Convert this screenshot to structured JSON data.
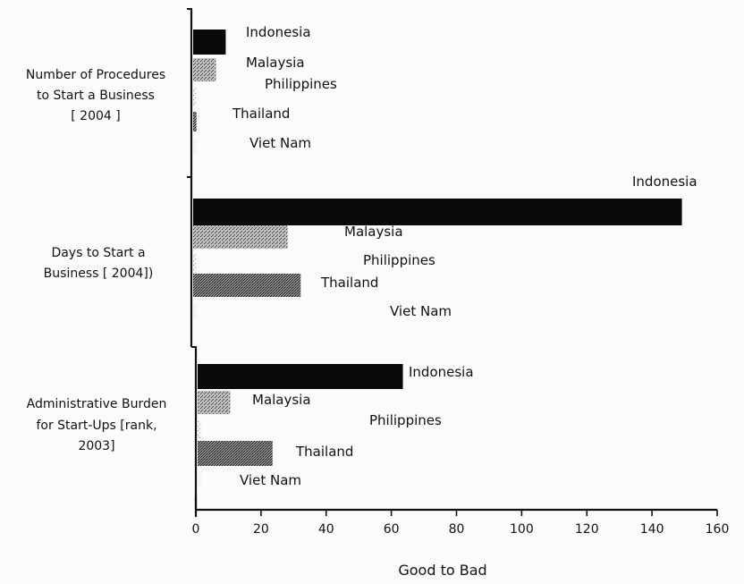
{
  "chart_data": {
    "type": "bar",
    "orientation": "horizontal",
    "xlabel": "Good to Bad",
    "xlim": [
      0,
      160
    ],
    "xticks": [
      0,
      20,
      40,
      60,
      80,
      100,
      120,
      140,
      160
    ],
    "grid": false,
    "groups": [
      {
        "label": [
          "Number of Procedures",
          "to Start a Business",
          "[ 2004 ]"
        ],
        "bars": [
          {
            "name": "Indonesia",
            "value": 10
          },
          {
            "name": "Malaysia",
            "value": 7
          },
          {
            "name": "Philippines",
            "value": 1
          },
          {
            "name": "Thailand",
            "value": 1
          },
          {
            "name": "Viet Nam",
            "value": 1
          }
        ]
      },
      {
        "label": [
          "Days to Start a",
          "Business [ 2004])"
        ],
        "bars": [
          {
            "name": "Indonesia",
            "value": 150
          },
          {
            "name": "Malaysia",
            "value": 29
          },
          {
            "name": "Philippines",
            "value": 1
          },
          {
            "name": "Thailand",
            "value": 33
          },
          {
            "name": "Viet Nam",
            "value": 1
          }
        ]
      },
      {
        "label": [
          "Administrative Burden",
          "for Start-Ups [rank,",
          "2003]"
        ],
        "bars": [
          {
            "name": "Indonesia",
            "value": 63
          },
          {
            "name": "Malaysia",
            "value": 10
          },
          {
            "name": "Philippines",
            "value": 1
          },
          {
            "name": "Thailand",
            "value": 23
          },
          {
            "name": "Viet Nam",
            "value": 1
          }
        ]
      }
    ],
    "series_colors": {
      "Indonesia": "#0a0a0a",
      "Malaysia": "#777777",
      "Philippines": "#dddddd",
      "Thailand": "#5a5a5a",
      "Viet Nam": "#f0f0f0"
    }
  }
}
